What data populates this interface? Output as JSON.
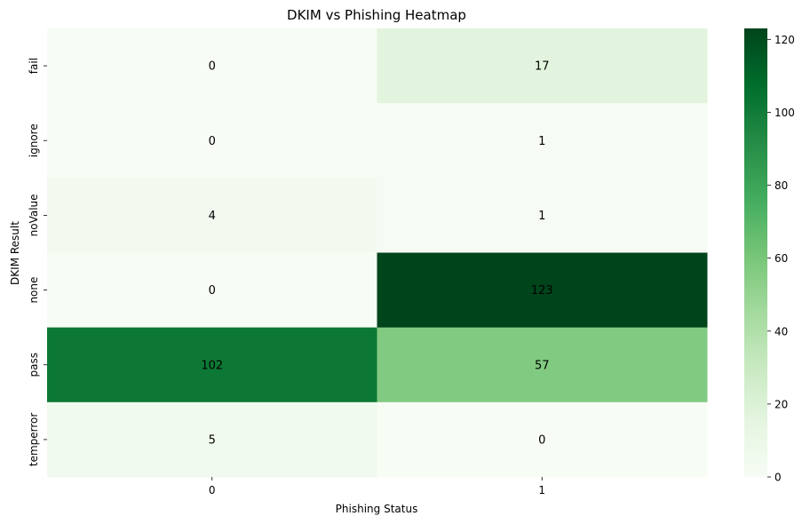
{
  "chart_data": {
    "type": "heatmap",
    "title": "DKIM vs Phishing Heatmap",
    "xlabel": "Phishing Status",
    "ylabel": "DKIM Result",
    "x_categories": [
      "0",
      "1"
    ],
    "y_categories": [
      "fail",
      "ignore",
      "noValue",
      "none",
      "pass",
      "temperror"
    ],
    "values": [
      [
        0,
        17
      ],
      [
        0,
        1
      ],
      [
        4,
        1
      ],
      [
        0,
        123
      ],
      [
        102,
        57
      ],
      [
        5,
        0
      ]
    ],
    "colormap": "Greens",
    "colorbar": {
      "range": [
        0,
        123
      ],
      "ticks": [
        0,
        20,
        40,
        60,
        80,
        100,
        120
      ]
    },
    "annotations": true,
    "grid": false
  }
}
